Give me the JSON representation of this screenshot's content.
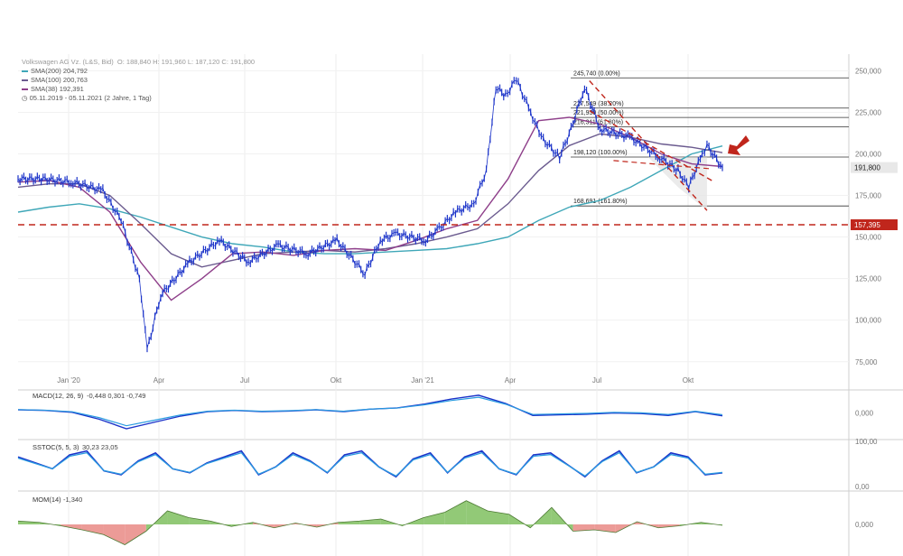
{
  "header": {
    "title": "Volkswagen AG Vz. (L&S, Bid)",
    "ohlc": "O: 188,840  H: 191,960  L: 187,120  C: 191,800",
    "sma200": {
      "label": "SMA(200)",
      "value": "204,792",
      "color": "#3fa7b8"
    },
    "sma100": {
      "label": "SMA(100)",
      "value": "200,763",
      "color": "#6b5b8f"
    },
    "sma38": {
      "label": "SMA(38)",
      "value": "192,391",
      "color": "#8e3f8a"
    },
    "range": "05.11.2019 - 05.11.2021  (2 Jahre, 1 Tag)"
  },
  "colors": {
    "price": "#1b33c9",
    "signal": "#2a9be0",
    "support": "#c0261c",
    "mom_pos": "#7fbf5f",
    "mom_neg": "#e98a85"
  },
  "chart_data": [
    {
      "type": "line",
      "panel": "price",
      "ylim": [
        70000,
        260000
      ],
      "y_ticks": [
        250000,
        225000,
        200000,
        175000,
        150000,
        125000,
        100000,
        75000
      ],
      "y_tick_labels": [
        "250,000",
        "225,000",
        "200,000",
        "175,000",
        "150,000",
        "125,000",
        "100,000",
        "75,000"
      ],
      "x_ticks": [
        "Jan '20",
        "Apr",
        "Jul",
        "Okt",
        "Jan '21",
        "Apr",
        "Jul",
        "Okt"
      ],
      "last_price_label": "191,800",
      "support_label": "157,395",
      "support_level": 157395,
      "fibonacci": [
        {
          "level": 245740,
          "label": "245,740 (0.00%)"
        },
        {
          "level": 227549,
          "label": "227,549 (38.20%)"
        },
        {
          "level": 221930,
          "label": "221,930 (50.00%)"
        },
        {
          "level": 216311,
          "label": "216,311 (61.80%)"
        },
        {
          "level": 198120,
          "label": "198,120 (100.00%)"
        },
        {
          "level": 168691,
          "label": "168,691 (161.80%)"
        }
      ],
      "series": [
        {
          "name": "Volkswagen AG Vz.",
          "x": [
            "2019-11-05",
            "2019-12-01",
            "2020-01-01",
            "2020-02-01",
            "2020-02-20",
            "2020-03-10",
            "2020-03-18",
            "2020-04-01",
            "2020-05-01",
            "2020-06-01",
            "2020-07-01",
            "2020-08-01",
            "2020-09-01",
            "2020-10-01",
            "2020-10-30",
            "2020-11-15",
            "2020-12-01",
            "2021-01-01",
            "2021-01-15",
            "2021-02-01",
            "2021-02-20",
            "2021-03-05",
            "2021-03-15",
            "2021-03-25",
            "2021-04-05",
            "2021-04-20",
            "2021-05-01",
            "2021-05-20",
            "2021-06-01",
            "2021-06-15",
            "2021-07-01",
            "2021-08-01",
            "2021-09-01",
            "2021-09-20",
            "2021-10-01",
            "2021-10-15",
            "2021-10-20",
            "2021-11-05"
          ],
          "values": [
            185000,
            185000,
            183000,
            178000,
            160000,
            125000,
            82000,
            115000,
            135000,
            148000,
            135000,
            145000,
            140000,
            148000,
            128000,
            148000,
            152000,
            148000,
            155000,
            165000,
            170000,
            190000,
            240000,
            235000,
            245000,
            225000,
            210000,
            198000,
            215000,
            240000,
            215000,
            210000,
            198000,
            190000,
            180000,
            200000,
            205000,
            191800
          ]
        },
        {
          "name": "SMA(200)",
          "values": [
            165000,
            168000,
            170000,
            167000,
            162000,
            156000,
            150000,
            146000,
            144000,
            141000,
            140000,
            140000,
            141000,
            142000,
            143000,
            146000,
            150000,
            160000,
            168000,
            172000,
            180000,
            190000,
            200000,
            204792
          ]
        },
        {
          "name": "SMA(100)",
          "values": [
            180000,
            182000,
            182000,
            175000,
            158000,
            140000,
            132000,
            136000,
            140000,
            141000,
            142000,
            141000,
            143000,
            146000,
            150000,
            155000,
            170000,
            190000,
            205000,
            212000,
            210000,
            206000,
            204000,
            200763
          ]
        },
        {
          "name": "SMA(38)",
          "values": [
            183000,
            184000,
            180000,
            165000,
            135000,
            112000,
            125000,
            140000,
            141000,
            139000,
            142000,
            143000,
            142000,
            148000,
            155000,
            160000,
            185000,
            220000,
            222000,
            218000,
            210000,
            200000,
            194000,
            192391
          ]
        }
      ]
    },
    {
      "type": "line",
      "panel": "macd",
      "legend": "MACD(12, 26, 9)",
      "values_text": [
        "-0,448",
        "0,301",
        "-0,749"
      ],
      "y_tick_labels": [
        "0,000"
      ],
      "series": [
        {
          "name": "MACD",
          "values": [
            0.5,
            0.4,
            0.1,
            -1.0,
            -2.5,
            -1.5,
            -0.5,
            0.2,
            0.4,
            0.2,
            0.3,
            0.5,
            0.2,
            0.6,
            0.8,
            1.4,
            2.2,
            2.8,
            1.5,
            -0.4,
            -0.3,
            -0.2,
            0.0,
            -0.1,
            -0.4,
            0.2,
            -0.448
          ]
        }
      ]
    },
    {
      "type": "line",
      "panel": "sstoc",
      "legend": "SSTOC(5, 5, 3)",
      "values_text": [
        "30,23",
        "23,05"
      ],
      "y_tick_labels": [
        "100,00",
        "0,00"
      ],
      "series": [
        {
          "name": "SSTOC",
          "values": [
            70,
            55,
            40,
            75,
            85,
            35,
            25,
            60,
            80,
            40,
            30,
            55,
            70,
            85,
            25,
            45,
            80,
            60,
            30,
            75,
            85,
            45,
            20,
            65,
            80,
            30,
            70,
            85,
            40,
            25,
            75,
            80,
            50,
            20,
            60,
            85,
            30,
            45,
            80,
            70,
            25,
            30
          ]
        }
      ]
    },
    {
      "type": "area",
      "panel": "mom",
      "legend": "MOM(14)",
      "values_text": [
        "-1,340"
      ],
      "y_tick_labels": [
        "0,000"
      ],
      "series": [
        {
          "name": "MOM(14)",
          "values": [
            5,
            3,
            -2,
            -8,
            -15,
            -30,
            -10,
            20,
            10,
            5,
            -3,
            3,
            -5,
            2,
            -4,
            3,
            5,
            8,
            -2,
            10,
            18,
            35,
            20,
            15,
            -5,
            25,
            -10,
            -8,
            -12,
            4,
            -5,
            -2,
            3,
            -1.34
          ]
        }
      ]
    }
  ]
}
